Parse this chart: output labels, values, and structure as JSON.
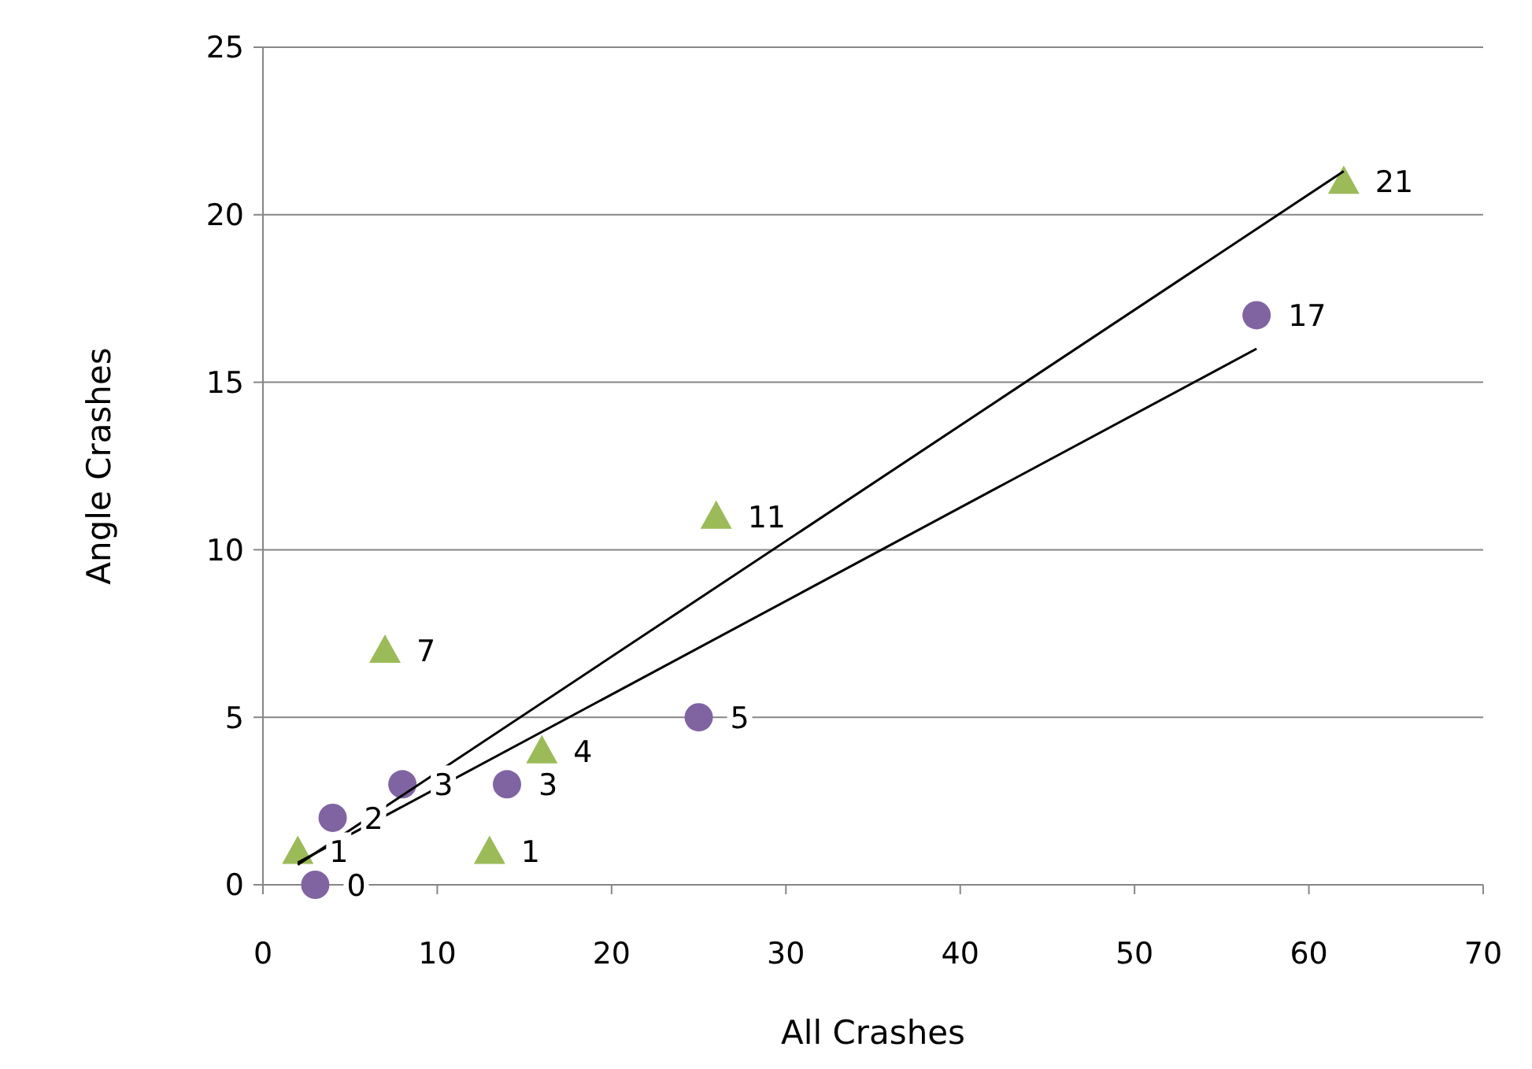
{
  "chart_data": {
    "type": "scatter",
    "xlabel": "All Crashes",
    "ylabel": "Angle Crashes",
    "xlim": [
      0,
      70
    ],
    "xticks": [
      0,
      10,
      20,
      30,
      40,
      50,
      60,
      70
    ],
    "ylim": [
      0,
      25
    ],
    "yticks": [
      0,
      5,
      10,
      15,
      20,
      25
    ],
    "grid": "y",
    "series": [
      {
        "marker": "circle",
        "color": "#8064a2",
        "x": [
          3,
          4,
          8,
          14,
          25,
          57
        ],
        "values": [
          0,
          2,
          3,
          3,
          5,
          17
        ],
        "value_labels": [
          "0",
          "2",
          "3",
          "3",
          "5",
          "17"
        ]
      },
      {
        "marker": "triangle",
        "color": "#9bbb59",
        "x": [
          2,
          7,
          13,
          16,
          26,
          62
        ],
        "values": [
          1,
          7,
          1,
          4,
          11,
          21
        ],
        "value_labels": [
          "1",
          "7",
          "1",
          "4",
          "11",
          "21"
        ]
      },
      {
        "type": "line",
        "marker": "none",
        "color": "#000000",
        "x": [
          2,
          57
        ],
        "values": [
          0.66,
          16.0
        ]
      },
      {
        "type": "line",
        "marker": "none",
        "color": "#000000",
        "x": [
          2,
          62
        ],
        "values": [
          0.6,
          21.3
        ]
      }
    ]
  }
}
